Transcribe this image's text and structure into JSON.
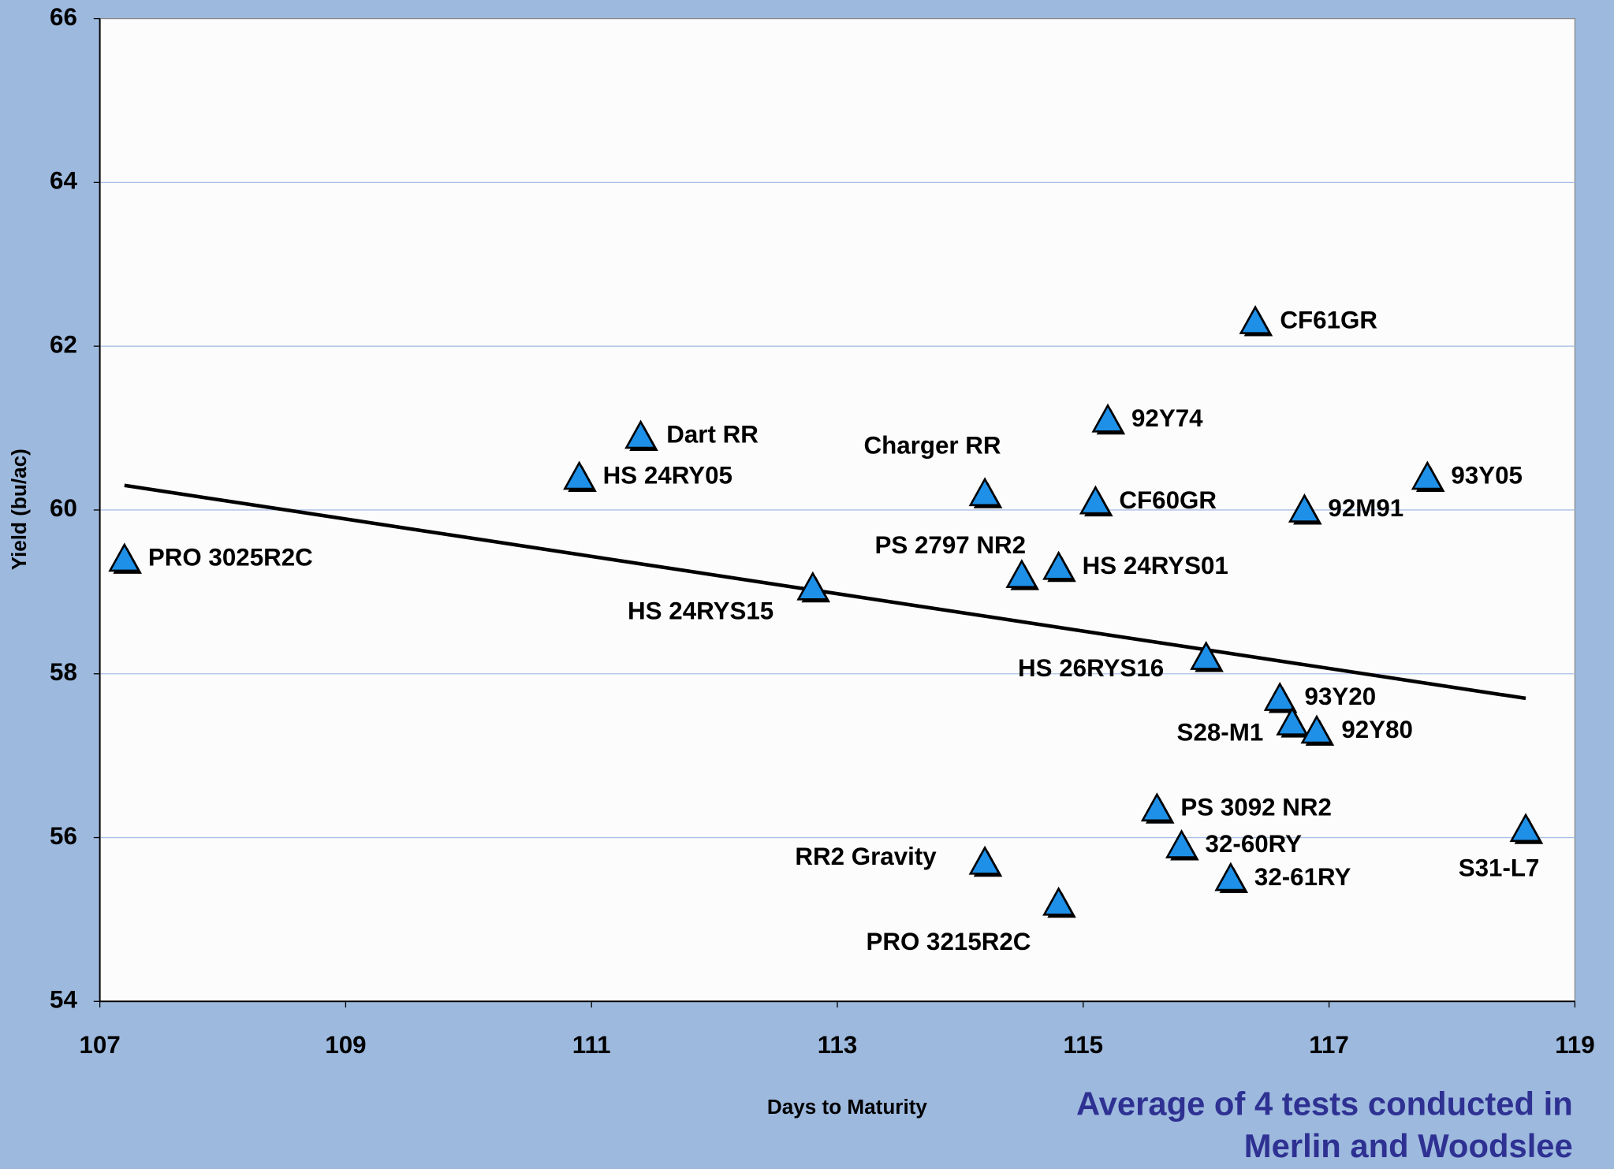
{
  "chart_data": {
    "type": "scatter",
    "y_label": "Yield (bu/ac)",
    "x_label": "Days to Maturity",
    "annotation": [
      "Average of 4 tests conducted in",
      "Merlin and Woodslee"
    ],
    "xlim": [
      107,
      119
    ],
    "xticks": [
      107,
      109,
      111,
      113,
      115,
      117,
      119
    ],
    "ylim": [
      54,
      66
    ],
    "yticks": [
      54,
      56,
      58,
      60,
      62,
      64,
      66
    ],
    "grid": true,
    "color": "#1e90e8",
    "labels": [
      "PRO 3025R2C",
      "HS 24RY05",
      "Dart RR",
      "HS 24RYS15",
      "Charger RR",
      "PS 2797 NR2",
      "HS 24RYS01",
      "CF60GR",
      "92Y74",
      "CF61GR",
      "HS 26RYS16",
      "93Y20",
      "S28-M1",
      "92Y80",
      "92M91",
      "93Y05",
      "PS 3092 NR2",
      "32-60RY",
      "32-61RY",
      "S31-L7",
      "RR2 Gravity",
      "PRO 3215R2C"
    ],
    "x": [
      107.2,
      110.9,
      111.4,
      112.8,
      114.2,
      114.5,
      114.8,
      115.1,
      115.2,
      116.4,
      116.0,
      116.6,
      116.7,
      116.9,
      116.8,
      117.8,
      115.6,
      115.8,
      116.2,
      118.6,
      114.2,
      114.8
    ],
    "values": [
      59.4,
      60.4,
      60.9,
      59.05,
      60.2,
      59.2,
      59.3,
      60.1,
      61.1,
      62.3,
      58.2,
      57.7,
      57.4,
      57.3,
      60.0,
      60.4,
      56.35,
      55.9,
      55.5,
      56.1,
      55.7,
      55.2
    ],
    "trendline": {
      "x": [
        107.2,
        118.6
      ],
      "y": [
        60.3,
        57.7
      ]
    }
  }
}
